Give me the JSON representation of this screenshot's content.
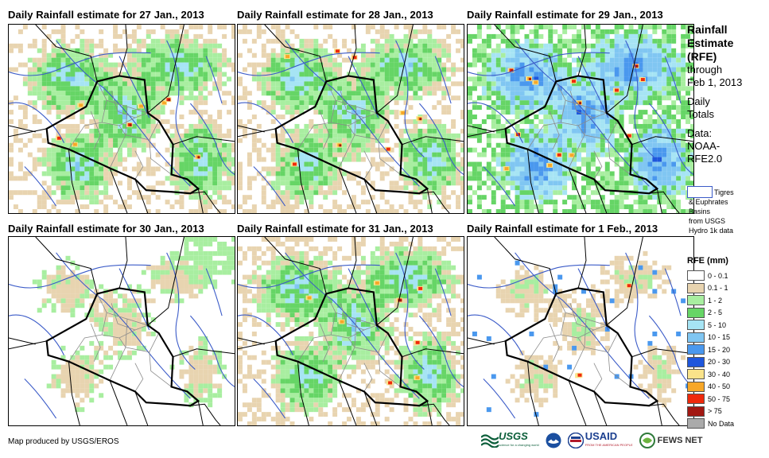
{
  "panels": [
    {
      "title": "Daily Rainfall estimate for 27 Jan., 2013",
      "intensity": 2
    },
    {
      "title": "Daily Rainfall estimate for 28 Jan., 2013",
      "intensity": 2
    },
    {
      "title": "Daily Rainfall estimate for 29 Jan., 2013",
      "intensity": 3
    },
    {
      "title": "Daily Rainfall estimate for 30 Jan., 2013",
      "intensity": 0
    },
    {
      "title": "Daily Rainfall estimate for 31 Jan., 2013",
      "intensity": 2
    },
    {
      "title": "Daily Rainfall estimate for 1 Feb., 2013",
      "intensity": 1
    }
  ],
  "sidebar": {
    "line1": "Rainfall",
    "line2": "Estimate",
    "line3": "(RFE)",
    "line4": "through",
    "line5": "Feb 1, 2013",
    "line6": "Daily",
    "line7": "Totals",
    "line8": "Data:",
    "line9": "NOAA-",
    "line10": "RFE2.0"
  },
  "basin": {
    "label1": "Tigres",
    "label2": "& Euphrates",
    "label3": "Basins",
    "label4": "from USGS",
    "label5": "Hydro 1k data"
  },
  "legend": {
    "title": "RFE (mm)",
    "items": [
      {
        "label": "0 - 0.1",
        "color": "#ffffff"
      },
      {
        "label": "0.1 - 1",
        "color": "#e8d4b0"
      },
      {
        "label": "1 - 2",
        "color": "#a8eea0"
      },
      {
        "label": "2 - 5",
        "color": "#66d566"
      },
      {
        "label": "5 - 10",
        "color": "#a6e4f4"
      },
      {
        "label": "10 - 15",
        "color": "#80c6f2"
      },
      {
        "label": "15 - 20",
        "color": "#4a98ee"
      },
      {
        "label": "20 - 30",
        "color": "#1e56dc"
      },
      {
        "label": "30 - 40",
        "color": "#fae38a"
      },
      {
        "label": "40 - 50",
        "color": "#f7a728"
      },
      {
        "label": "50 - 75",
        "color": "#ef2a0c"
      },
      {
        "label": "> 75",
        "color": "#a21812"
      },
      {
        "label": "No Data",
        "color": "#aaaaaa"
      }
    ]
  },
  "footer": {
    "text": "Map produced by USGS/EROS"
  },
  "logos": {
    "usgs": "USGS",
    "usgs_tag": "science for a changing world",
    "usaid": "USAID",
    "usaid_tag": "FROM THE AMERICAN PEOPLE",
    "fews": "FEWS NET"
  }
}
